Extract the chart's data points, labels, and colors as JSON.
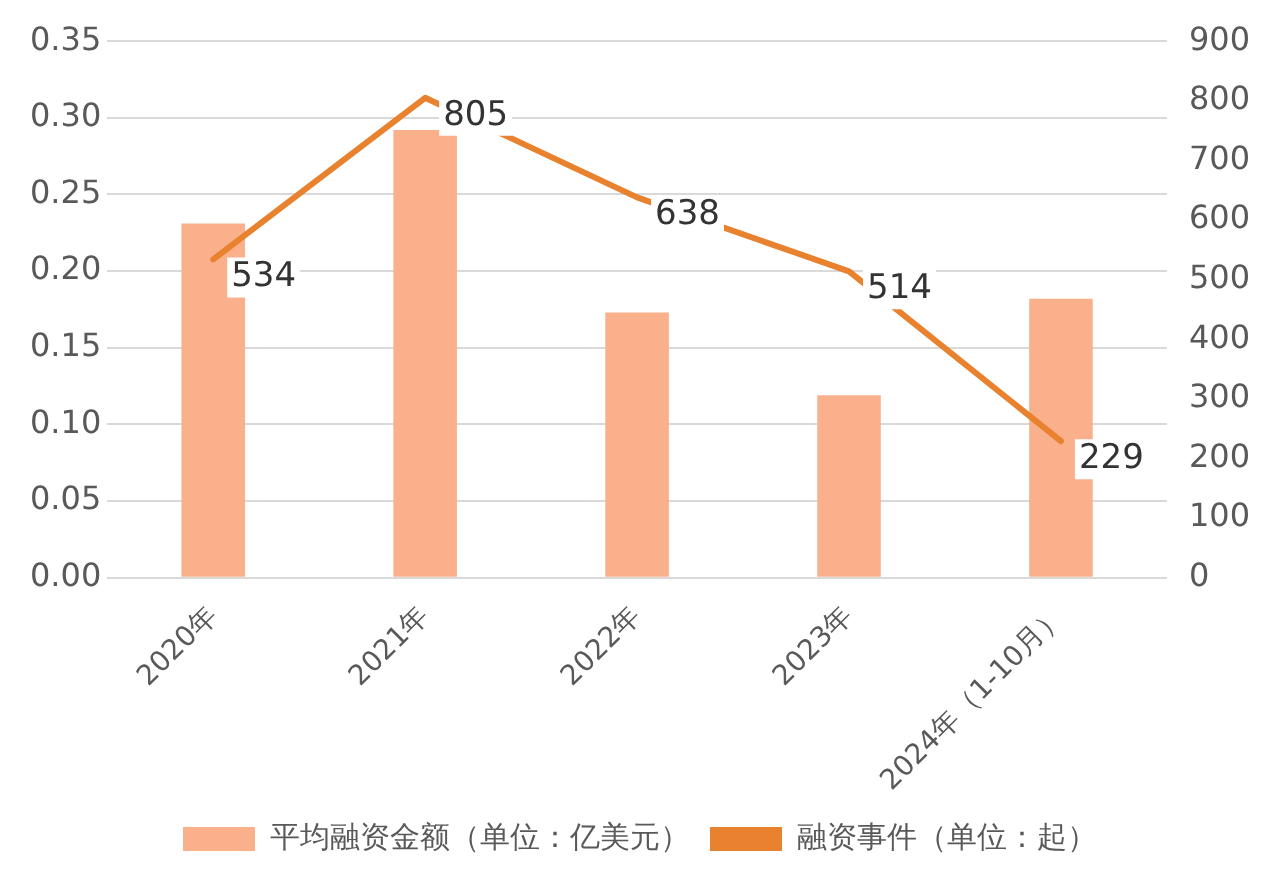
{
  "chart_data": {
    "type": "bar",
    "categories": [
      "2020年",
      "2021年",
      "2022年",
      "2023年",
      "2024年（1-10月）"
    ],
    "series": [
      {
        "name": "平均融资金额（单位：亿美元）",
        "color": "#fbb08c",
        "values": [
          0.231,
          0.292,
          0.173,
          0.119,
          0.182
        ]
      },
      {
        "name": "融资事件（单位：起）",
        "type": "line",
        "axis": "y2",
        "color": "#e8822e",
        "values": [
          534,
          805,
          638,
          514,
          229
        ],
        "value_labels": [
          "534",
          "805",
          "638",
          "514",
          "229"
        ]
      }
    ],
    "ylim": [
      0,
      0.35
    ],
    "yticks": [
      {
        "value": 0,
        "label": "0.00"
      },
      {
        "value": 0.05,
        "label": "0.05"
      },
      {
        "value": 0.1,
        "label": "0.10"
      },
      {
        "value": 0.15,
        "label": "0.15"
      },
      {
        "value": 0.2,
        "label": "0.20"
      },
      {
        "value": 0.25,
        "label": "0.25"
      },
      {
        "value": 0.3,
        "label": "0.30"
      },
      {
        "value": 0.35,
        "label": "0.35"
      }
    ],
    "y2lim": [
      0,
      900
    ],
    "y2ticks": [
      0,
      100,
      200,
      300,
      400,
      500,
      600,
      700,
      800,
      900
    ],
    "grid": "y",
    "legend": "bottom",
    "marker": "none"
  }
}
